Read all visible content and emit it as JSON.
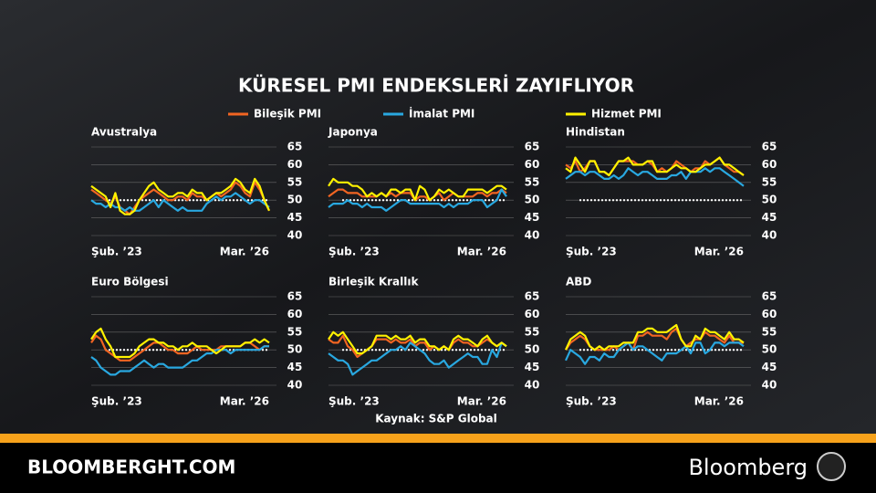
{
  "title": "KÜRESEL PMI ENDEKSLERİ ZAYIFLIYOR",
  "source": "Kaynak: S&P Global",
  "footer": {
    "site": "BLOOMBERGHT.COM",
    "brand": "Bloomberg"
  },
  "chart_data": [
    {
      "type": "line",
      "title": "Avustralya",
      "categories": [
        "Şub. ’23",
        null,
        null,
        null,
        null,
        null,
        null,
        null,
        null,
        null,
        null,
        null,
        null,
        null,
        null,
        null,
        null,
        null,
        null,
        null,
        null,
        null,
        null,
        null,
        null,
        null,
        null,
        null,
        null,
        null,
        null,
        null,
        null,
        null,
        null,
        null,
        null,
        "Mar. ’26"
      ],
      "ylim": [
        40,
        65
      ],
      "yticks": [
        40,
        45,
        50,
        55,
        60,
        65
      ],
      "reference_line": 50,
      "series": [
        {
          "name": "Bileşik PMI",
          "color": "#f26522",
          "values": [
            53,
            52,
            51,
            50,
            49,
            51,
            48,
            47,
            46,
            48,
            50,
            51,
            52,
            53,
            52,
            51,
            50,
            50,
            51,
            51,
            50,
            52,
            51,
            51,
            50,
            51,
            52,
            51,
            52,
            53,
            55,
            54,
            52,
            51,
            55,
            53,
            50,
            47
          ]
        },
        {
          "name": "İmalat PMI",
          "color": "#29a8e0",
          "values": [
            50,
            49,
            49,
            48,
            49,
            48,
            48,
            47,
            48,
            47,
            47,
            48,
            49,
            50,
            48,
            50,
            49,
            48,
            47,
            48,
            47,
            47,
            47,
            47,
            49,
            50,
            51,
            50,
            51,
            51,
            52,
            51,
            50,
            49,
            50,
            50,
            49,
            48
          ]
        },
        {
          "name": "Hizmet PMI",
          "color": "#fff200",
          "values": [
            54,
            53,
            52,
            51,
            48,
            52,
            47,
            46,
            46,
            47,
            50,
            52,
            54,
            55,
            53,
            52,
            51,
            51,
            52,
            52,
            51,
            53,
            52,
            52,
            50,
            51,
            52,
            52,
            53,
            54,
            56,
            55,
            53,
            52,
            56,
            54,
            50,
            47
          ]
        }
      ]
    },
    {
      "type": "line",
      "title": "Japonya",
      "categories": [
        "Şub. ’23",
        null,
        null,
        null,
        null,
        null,
        null,
        null,
        null,
        null,
        null,
        null,
        null,
        null,
        null,
        null,
        null,
        null,
        null,
        null,
        null,
        null,
        null,
        null,
        null,
        null,
        null,
        null,
        null,
        null,
        null,
        null,
        null,
        null,
        null,
        null,
        null,
        "Mar. ’26"
      ],
      "ylim": [
        40,
        65
      ],
      "yticks": [
        40,
        45,
        50,
        55,
        60,
        65
      ],
      "reference_line": 50,
      "series": [
        {
          "name": "Bileşik PMI",
          "color": "#f26522",
          "values": [
            51,
            52,
            53,
            53,
            52,
            52,
            52,
            51,
            51,
            51,
            51,
            52,
            51,
            52,
            51,
            52,
            52,
            52,
            50,
            51,
            51,
            50,
            51,
            52,
            50,
            51,
            52,
            51,
            51,
            51,
            51,
            52,
            52,
            51,
            52,
            52,
            53,
            52
          ]
        },
        {
          "name": "İmalat PMI",
          "color": "#29a8e0",
          "values": [
            48,
            49,
            49,
            49,
            50,
            49,
            49,
            48,
            49,
            48,
            48,
            48,
            47,
            48,
            49,
            50,
            50,
            49,
            49,
            49,
            49,
            49,
            49,
            49,
            48,
            49,
            48,
            49,
            49,
            49,
            50,
            50,
            50,
            48,
            49,
            50,
            53,
            51
          ]
        },
        {
          "name": "Hizmet PMI",
          "color": "#fff200",
          "values": [
            54,
            56,
            55,
            55,
            55,
            54,
            54,
            53,
            51,
            52,
            51,
            52,
            51,
            53,
            53,
            52,
            53,
            53,
            50,
            54,
            53,
            50,
            51,
            53,
            52,
            53,
            52,
            51,
            51,
            53,
            53,
            53,
            53,
            52,
            53,
            54,
            54,
            53
          ]
        }
      ]
    },
    {
      "type": "line",
      "title": "Hindistan",
      "categories": [
        "Şub. ’23",
        null,
        null,
        null,
        null,
        null,
        null,
        null,
        null,
        null,
        null,
        null,
        null,
        null,
        null,
        null,
        null,
        null,
        null,
        null,
        null,
        null,
        null,
        null,
        null,
        null,
        null,
        null,
        null,
        null,
        null,
        null,
        null,
        null,
        null,
        null,
        null,
        "Mar. ’26"
      ],
      "ylim": [
        40,
        65
      ],
      "yticks": [
        40,
        45,
        50,
        55,
        60,
        65
      ],
      "reference_line": 50,
      "series": [
        {
          "name": "Bileşik PMI",
          "color": "#f26522",
          "values": [
            60,
            59,
            61,
            58,
            59,
            61,
            61,
            58,
            58,
            57,
            59,
            61,
            61,
            61,
            61,
            60,
            60,
            61,
            60,
            58,
            59,
            58,
            59,
            61,
            60,
            59,
            58,
            59,
            59,
            61,
            60,
            61,
            62,
            60,
            59,
            58,
            58,
            57
          ]
        },
        {
          "name": "İmalat PMI",
          "color": "#29a8e0",
          "values": [
            56,
            57,
            58,
            58,
            57,
            58,
            58,
            57,
            56,
            56,
            57,
            56,
            57,
            59,
            58,
            57,
            58,
            58,
            57,
            56,
            56,
            56,
            57,
            57,
            58,
            56,
            58,
            58,
            58,
            59,
            58,
            59,
            59,
            58,
            57,
            56,
            55,
            54
          ]
        },
        {
          "name": "Hizmet PMI",
          "color": "#fff200",
          "values": [
            59,
            58,
            62,
            60,
            58,
            61,
            61,
            58,
            58,
            57,
            59,
            61,
            61,
            62,
            60,
            60,
            60,
            61,
            61,
            58,
            58,
            58,
            59,
            60,
            59,
            59,
            58,
            58,
            59,
            60,
            60,
            61,
            62,
            60,
            60,
            59,
            58,
            57
          ]
        }
      ]
    },
    {
      "type": "line",
      "title": "Euro Bölgesi",
      "categories": [
        "Şub. ’23",
        null,
        null,
        null,
        null,
        null,
        null,
        null,
        null,
        null,
        null,
        null,
        null,
        null,
        null,
        null,
        null,
        null,
        null,
        null,
        null,
        null,
        null,
        null,
        null,
        null,
        null,
        null,
        null,
        null,
        null,
        null,
        null,
        null,
        null,
        null,
        null,
        "Mar. ’26"
      ],
      "ylim": [
        40,
        65
      ],
      "yticks": [
        40,
        45,
        50,
        55,
        60,
        65
      ],
      "reference_line": 50,
      "series": [
        {
          "name": "Bileşik PMI",
          "color": "#f26522",
          "values": [
            52,
            54,
            53,
            50,
            49,
            48,
            47,
            47,
            47,
            48,
            49,
            50,
            51,
            52,
            52,
            51,
            50,
            50,
            49,
            49,
            49,
            50,
            51,
            50,
            50,
            50,
            50,
            51,
            51,
            51,
            51,
            51,
            52,
            52,
            51,
            50,
            51,
            51
          ]
        },
        {
          "name": "İmalat PMI",
          "color": "#29a8e0",
          "values": [
            48,
            47,
            45,
            44,
            43,
            43,
            44,
            44,
            44,
            45,
            46,
            47,
            46,
            45,
            46,
            46,
            45,
            45,
            45,
            45,
            46,
            47,
            47,
            48,
            49,
            49,
            50,
            50,
            50,
            49,
            50,
            50,
            50,
            50,
            50,
            50,
            51,
            51
          ]
        },
        {
          "name": "Hizmet PMI",
          "color": "#fff200",
          "values": [
            53,
            55,
            56,
            53,
            51,
            48,
            48,
            48,
            48,
            49,
            51,
            52,
            53,
            53,
            52,
            52,
            51,
            51,
            50,
            51,
            51,
            52,
            51,
            51,
            51,
            50,
            49,
            50,
            51,
            51,
            51,
            51,
            52,
            52,
            53,
            52,
            53,
            52
          ]
        }
      ]
    },
    {
      "type": "line",
      "title": "Birleşik Krallık",
      "categories": [
        "Şub. ’23",
        null,
        null,
        null,
        null,
        null,
        null,
        null,
        null,
        null,
        null,
        null,
        null,
        null,
        null,
        null,
        null,
        null,
        null,
        null,
        null,
        null,
        null,
        null,
        null,
        null,
        null,
        null,
        null,
        null,
        null,
        null,
        null,
        null,
        null,
        null,
        null,
        "Mar. ’26"
      ],
      "ylim": [
        40,
        65
      ],
      "yticks": [
        40,
        45,
        50,
        55,
        60,
        65
      ],
      "reference_line": 50,
      "series": [
        {
          "name": "Bileşik PMI",
          "color": "#f26522",
          "values": [
            53,
            52,
            52,
            54,
            51,
            50,
            48,
            49,
            50,
            51,
            53,
            53,
            53,
            52,
            53,
            52,
            52,
            53,
            51,
            52,
            52,
            50,
            51,
            50,
            51,
            50,
            52,
            53,
            52,
            52,
            51,
            51,
            52,
            53,
            52,
            51,
            52,
            51
          ]
        },
        {
          "name": "İmalat PMI",
          "color": "#29a8e0",
          "values": [
            49,
            48,
            47,
            47,
            46,
            43,
            44,
            45,
            46,
            47,
            47,
            48,
            49,
            50,
            50,
            51,
            50,
            52,
            51,
            50,
            49,
            47,
            46,
            46,
            47,
            45,
            46,
            47,
            48,
            49,
            48,
            48,
            46,
            46,
            50,
            48,
            52,
            51
          ]
        },
        {
          "name": "Hizmet PMI",
          "color": "#fff200",
          "values": [
            53,
            55,
            54,
            55,
            53,
            51,
            49,
            49,
            50,
            51,
            54,
            54,
            54,
            53,
            54,
            53,
            53,
            54,
            52,
            53,
            53,
            51,
            51,
            50,
            51,
            50,
            53,
            54,
            53,
            53,
            52,
            51,
            53,
            54,
            52,
            51,
            52,
            51
          ]
        }
      ]
    },
    {
      "type": "line",
      "title": "ABD",
      "categories": [
        "Şub. ’23",
        null,
        null,
        null,
        null,
        null,
        null,
        null,
        null,
        null,
        null,
        null,
        null,
        null,
        null,
        null,
        null,
        null,
        null,
        null,
        null,
        null,
        null,
        null,
        null,
        null,
        null,
        null,
        null,
        null,
        null,
        null,
        null,
        null,
        null,
        null,
        null,
        "Mar. ’26"
      ],
      "ylim": [
        40,
        65
      ],
      "yticks": [
        40,
        45,
        50,
        55,
        60,
        65
      ],
      "reference_line": 50,
      "series": [
        {
          "name": "Bileşik PMI",
          "color": "#f26522",
          "values": [
            50,
            52,
            53,
            54,
            53,
            51,
            50,
            50,
            50,
            50,
            51,
            50,
            51,
            52,
            50,
            54,
            54,
            55,
            54,
            54,
            54,
            53,
            55,
            56,
            53,
            51,
            52,
            53,
            53,
            55,
            54,
            54,
            53,
            52,
            54,
            52,
            52,
            52
          ]
        },
        {
          "name": "İmalat PMI",
          "color": "#29a8e0",
          "values": [
            47,
            50,
            49,
            48,
            46,
            48,
            48,
            47,
            49,
            48,
            48,
            50,
            51,
            52,
            50,
            51,
            51,
            50,
            49,
            48,
            47,
            49,
            49,
            49,
            50,
            51,
            49,
            52,
            52,
            49,
            50,
            52,
            52,
            51,
            52,
            52,
            52,
            51
          ]
        },
        {
          "name": "Hizmet PMI",
          "color": "#fff200",
          "values": [
            50,
            53,
            54,
            55,
            54,
            51,
            50,
            51,
            50,
            51,
            51,
            51,
            52,
            52,
            52,
            55,
            55,
            56,
            56,
            55,
            55,
            55,
            56,
            57,
            53,
            51,
            51,
            54,
            53,
            56,
            55,
            55,
            54,
            53,
            55,
            53,
            53,
            52
          ]
        }
      ]
    }
  ]
}
